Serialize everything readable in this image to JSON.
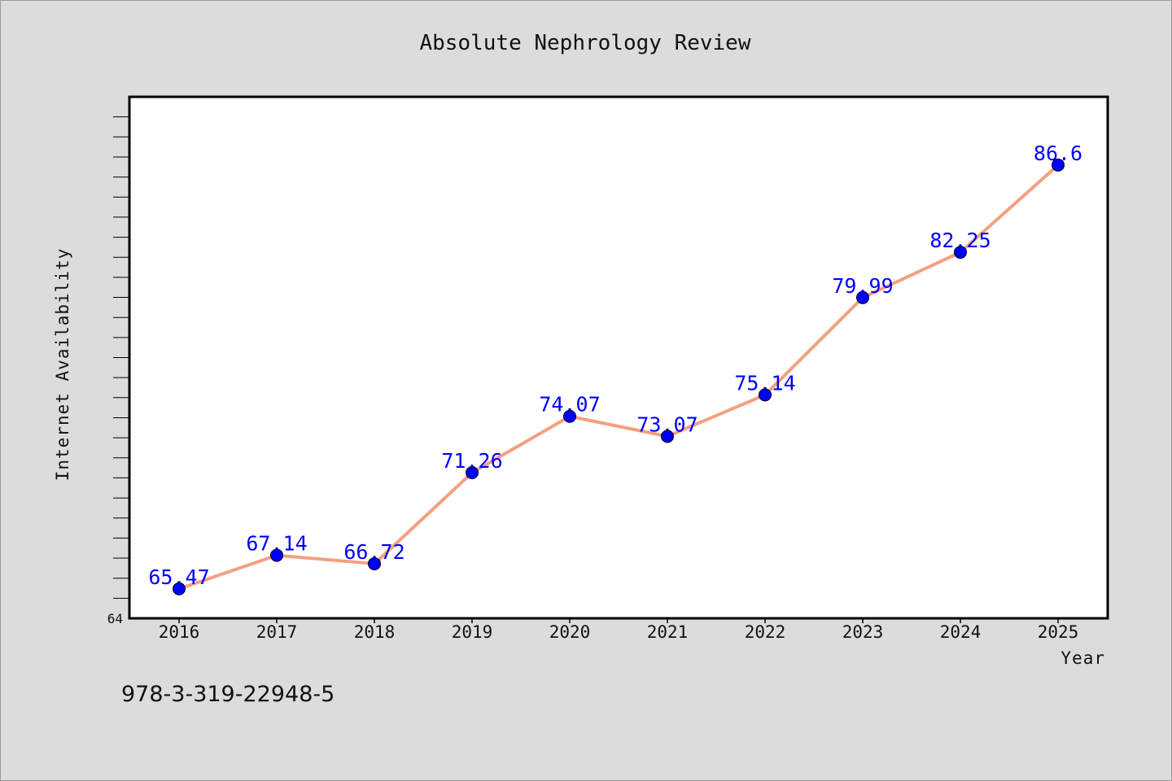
{
  "chart_data": {
    "type": "line",
    "title": "Absolute Nephrology Review",
    "xlabel": "Year",
    "ylabel": "Internet Availability",
    "x": [
      "2016",
      "2017",
      "2018",
      "2019",
      "2020",
      "2021",
      "2022",
      "2023",
      "2024",
      "2025"
    ],
    "series": [
      {
        "values": [
          65.47,
          67.14,
          66.72,
          71.26,
          74.07,
          73.07,
          75.14,
          79.99,
          82.25,
          86.6
        ]
      }
    ],
    "data_labels": [
      "65.47",
      "67.14",
      "66.72",
      "71.26",
      "74.07",
      "73.07",
      "75.14",
      "79.99",
      "82.25",
      "86.6"
    ],
    "ylim": [
      64,
      90
    ],
    "yticks_labeled": [
      "64"
    ],
    "grid": false,
    "line_color": "#f4a080",
    "marker_color": "#0000ff",
    "label_color": "#0000ff"
  },
  "footer": {
    "isbn": "978-3-319-22948-5"
  }
}
